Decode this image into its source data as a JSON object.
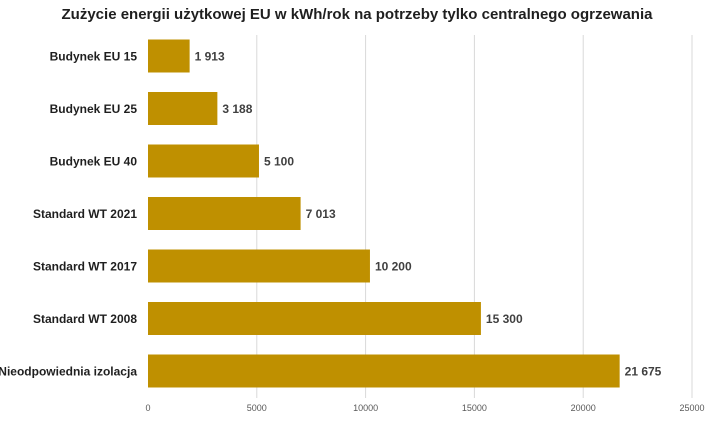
{
  "chart_data": {
    "type": "bar",
    "orientation": "horizontal",
    "title": "Zużycie energii użytkowej EU w kWh/rok na potrzeby tylko centralnego ogrzewania",
    "categories": [
      "Budynek EU 15",
      "Budynek EU 25",
      "Budynek EU 40",
      "Standard WT 2021",
      "Standard WT 2017",
      "Standard WT 2008",
      "Nieodpowiednia izolacja"
    ],
    "values": [
      1913,
      3188,
      5100,
      7013,
      10200,
      15300,
      21675
    ],
    "data_labels": [
      "1 913",
      "3 188",
      "5 100",
      "7 013",
      "10 200",
      "15 300",
      "21 675"
    ],
    "xlim": [
      0,
      25000
    ],
    "x_ticks": [
      0,
      5000,
      10000,
      15000,
      20000,
      25000
    ],
    "x_tick_labels": [
      "0",
      "5000",
      "10000",
      "15000",
      "20000",
      "25000"
    ],
    "grid": true,
    "legend": "none",
    "bar_color": "#BF9000",
    "grid_color": "#D9D9D9"
  }
}
